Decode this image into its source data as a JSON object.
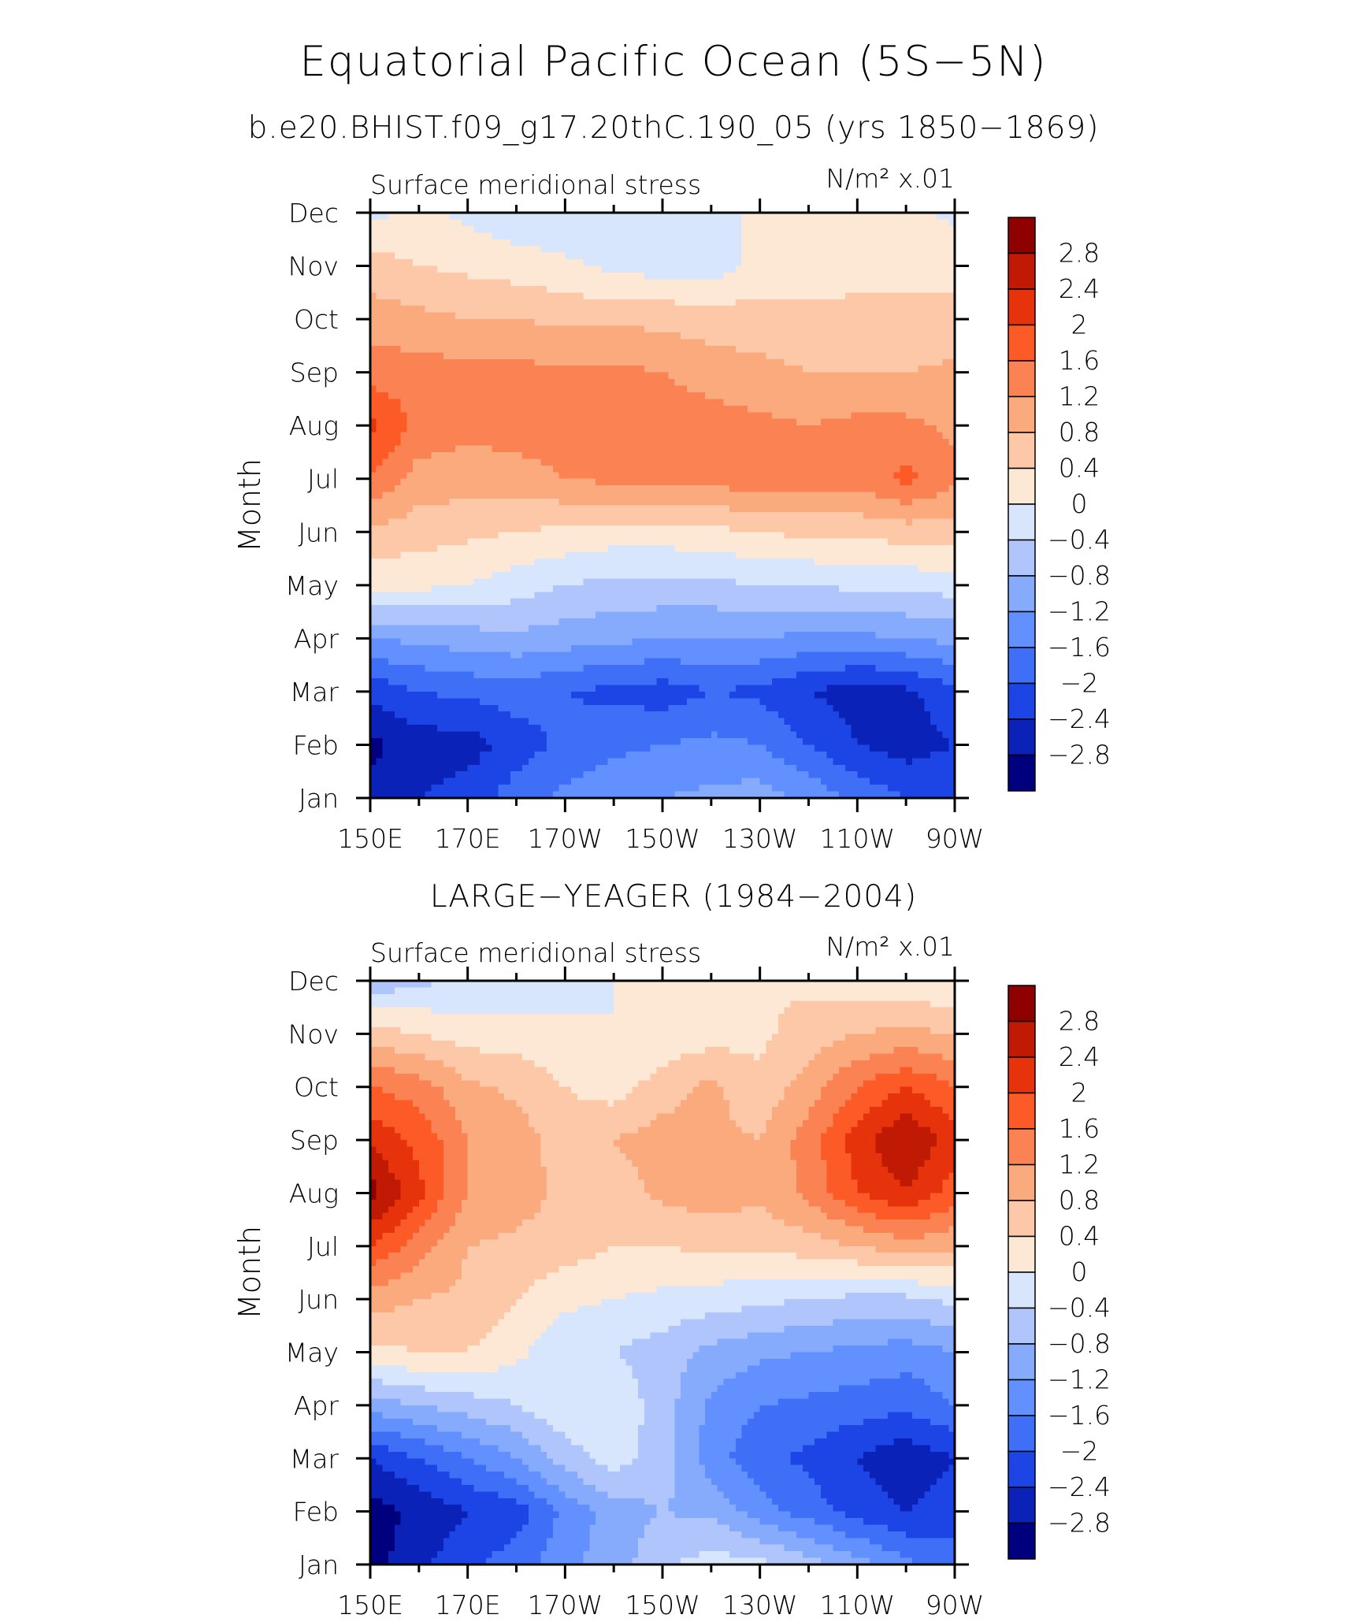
{
  "title": "Equatorial Pacific Ocean (5S−5N)",
  "subtitle": "b.e20.BHIST.f09_g17.20thC.190_05 (yrs 1850−1869)",
  "colors": [
    "#00007f",
    "#0b22b8",
    "#1d45e5",
    "#3f6ff7",
    "#6290ff",
    "#87abfc",
    "#afc5fc",
    "#d7e6fd",
    "#fde8d5",
    "#fcc8a8",
    "#fbaa7e",
    "#fb8253",
    "#fc5a26",
    "#e6330c",
    "#c11a04",
    "#8f0000"
  ],
  "chart_data": [
    {
      "type": "heatmap",
      "panel_title": "",
      "left_label": "Surface meridional stress",
      "right_label": "N/m² x.01",
      "ylabel": "Month",
      "x_ticks": [
        "150E",
        "170E",
        "170W",
        "150W",
        "130W",
        "110W",
        "90W"
      ],
      "x_values": [
        150,
        160,
        170,
        180,
        190,
        200,
        210,
        220,
        230,
        240,
        250,
        260,
        270
      ],
      "y_ticks": [
        "Jan",
        "Feb",
        "Mar",
        "Apr",
        "May",
        "Jun",
        "Jul",
        "Aug",
        "Sep",
        "Oct",
        "Nov",
        "Dec"
      ],
      "colorbar_labels": [
        "−2.8",
        "−2.4",
        "−2",
        "−1.6",
        "−1.2",
        "−0.8",
        "−0.4",
        "0",
        "0.4",
        "0.8",
        "1.2",
        "1.6",
        "2",
        "2.4",
        "2.8"
      ],
      "z": [
        [
          -2.7,
          -2.4,
          -2.2,
          -1.8,
          -1.5,
          -1.3,
          -1.2,
          -1.1,
          -1.0,
          -1.3,
          -1.7,
          -2.0,
          -2.0
        ],
        [
          -2.9,
          -2.6,
          -2.6,
          -2.2,
          -1.9,
          -1.7,
          -1.6,
          -1.5,
          -1.6,
          -2.0,
          -2.4,
          -2.6,
          -2.4
        ],
        [
          -2.3,
          -2.0,
          -1.9,
          -1.8,
          -2.0,
          -2.1,
          -2.2,
          -2.0,
          -2.1,
          -2.4,
          -2.6,
          -2.5,
          -2.1
        ],
        [
          -1.2,
          -1.1,
          -1.0,
          -0.9,
          -1.0,
          -1.1,
          -1.2,
          -1.2,
          -1.2,
          -1.3,
          -1.3,
          -1.2,
          -1.1
        ],
        [
          0.1,
          0.1,
          0.0,
          -0.2,
          -0.4,
          -0.5,
          -0.5,
          -0.5,
          -0.4,
          -0.4,
          -0.3,
          -0.3,
          -0.2
        ],
        [
          0.7,
          0.6,
          0.5,
          0.4,
          0.3,
          0.2,
          0.2,
          0.3,
          0.4,
          0.5,
          0.5,
          0.6,
          0.6
        ],
        [
          1.6,
          1.0,
          1.0,
          1.0,
          1.2,
          1.3,
          1.4,
          1.4,
          1.4,
          1.4,
          1.4,
          1.7,
          1.3
        ],
        [
          2.1,
          1.5,
          1.3,
          1.4,
          1.5,
          1.5,
          1.5,
          1.4,
          1.3,
          1.2,
          1.3,
          1.3,
          1.1
        ],
        [
          1.4,
          1.4,
          1.3,
          1.3,
          1.3,
          1.3,
          1.2,
          1.0,
          0.9,
          0.8,
          0.8,
          0.8,
          0.9
        ],
        [
          1.0,
          0.9,
          0.8,
          0.8,
          0.7,
          0.7,
          0.7,
          0.6,
          0.6,
          0.5,
          0.5,
          0.5,
          0.5
        ],
        [
          0.6,
          0.4,
          0.3,
          0.2,
          0.1,
          -0.1,
          -0.2,
          -0.2,
          0.1,
          0.2,
          0.3,
          0.3,
          0.3
        ],
        [
          -0.1,
          0.1,
          -0.1,
          -0.3,
          -0.4,
          -0.4,
          -0.3,
          -0.2,
          0.1,
          0.2,
          0.2,
          0.1,
          -0.1
        ]
      ]
    },
    {
      "type": "heatmap",
      "panel_title": "LARGE−YEAGER (1984−2004)",
      "left_label": "Surface meridional stress",
      "right_label": "N/m² x.01",
      "ylabel": "Month",
      "x_ticks": [
        "150E",
        "170E",
        "170W",
        "150W",
        "130W",
        "110W",
        "90W"
      ],
      "x_values": [
        150,
        160,
        170,
        180,
        190,
        200,
        210,
        220,
        230,
        240,
        250,
        260,
        270
      ],
      "y_ticks": [
        "Jan",
        "Feb",
        "Mar",
        "Apr",
        "May",
        "Jun",
        "Jul",
        "Aug",
        "Sep",
        "Oct",
        "Nov",
        "Dec"
      ],
      "colorbar_labels": [
        "−2.8",
        "−2.4",
        "−2",
        "−1.6",
        "−1.2",
        "−0.8",
        "−0.4",
        "0",
        "0.4",
        "0.8",
        "1.2",
        "1.6",
        "2",
        "2.4",
        "2.8"
      ],
      "z": [
        [
          -3.0,
          -2.5,
          -2.1,
          -1.8,
          -1.3,
          -1.0,
          -0.5,
          -0.2,
          -0.3,
          -0.6,
          -1.0,
          -1.5,
          -1.8
        ],
        [
          -3.0,
          -2.7,
          -2.4,
          -2.2,
          -1.5,
          -1.0,
          -0.8,
          -0.9,
          -1.4,
          -1.8,
          -2.2,
          -2.4,
          -2.2
        ],
        [
          -2.4,
          -2.0,
          -1.6,
          -1.2,
          -0.6,
          -0.2,
          -0.6,
          -1.4,
          -1.9,
          -2.1,
          -2.4,
          -2.7,
          -2.4
        ],
        [
          -1.0,
          -0.8,
          -0.6,
          -0.4,
          -0.1,
          -0.1,
          -0.6,
          -1.3,
          -1.6,
          -1.7,
          -1.8,
          -1.9,
          -1.6
        ],
        [
          0.3,
          0.4,
          0.4,
          0.1,
          -0.3,
          -0.4,
          -0.6,
          -0.9,
          -1.1,
          -1.2,
          -1.3,
          -1.4,
          -1.2
        ],
        [
          1.0,
          0.8,
          0.7,
          0.4,
          0.1,
          0.0,
          -0.1,
          -0.2,
          -0.3,
          -0.4,
          -0.5,
          -0.5,
          -0.3
        ],
        [
          2.0,
          1.4,
          0.8,
          0.7,
          0.6,
          0.4,
          0.4,
          0.5,
          0.5,
          0.6,
          0.8,
          1.0,
          0.9
        ],
        [
          3.0,
          2.1,
          1.2,
          1.0,
          0.7,
          0.6,
          0.9,
          1.0,
          0.9,
          1.3,
          2.0,
          2.4,
          1.8
        ],
        [
          2.3,
          1.9,
          1.2,
          1.0,
          0.6,
          0.8,
          1.0,
          0.9,
          0.8,
          1.4,
          2.2,
          2.8,
          2.2
        ],
        [
          1.6,
          1.4,
          0.9,
          0.7,
          0.4,
          0.2,
          0.6,
          0.9,
          0.5,
          1.0,
          1.6,
          2.0,
          1.6
        ],
        [
          0.6,
          0.4,
          0.2,
          0.2,
          0.1,
          0.0,
          0.1,
          0.2,
          0.3,
          0.6,
          0.8,
          0.9,
          0.8
        ],
        [
          -0.7,
          -0.5,
          -0.3,
          -0.3,
          -0.2,
          0.0,
          0.1,
          0.3,
          0.4,
          0.3,
          0.2,
          0.1,
          0.0
        ]
      ]
    }
  ]
}
